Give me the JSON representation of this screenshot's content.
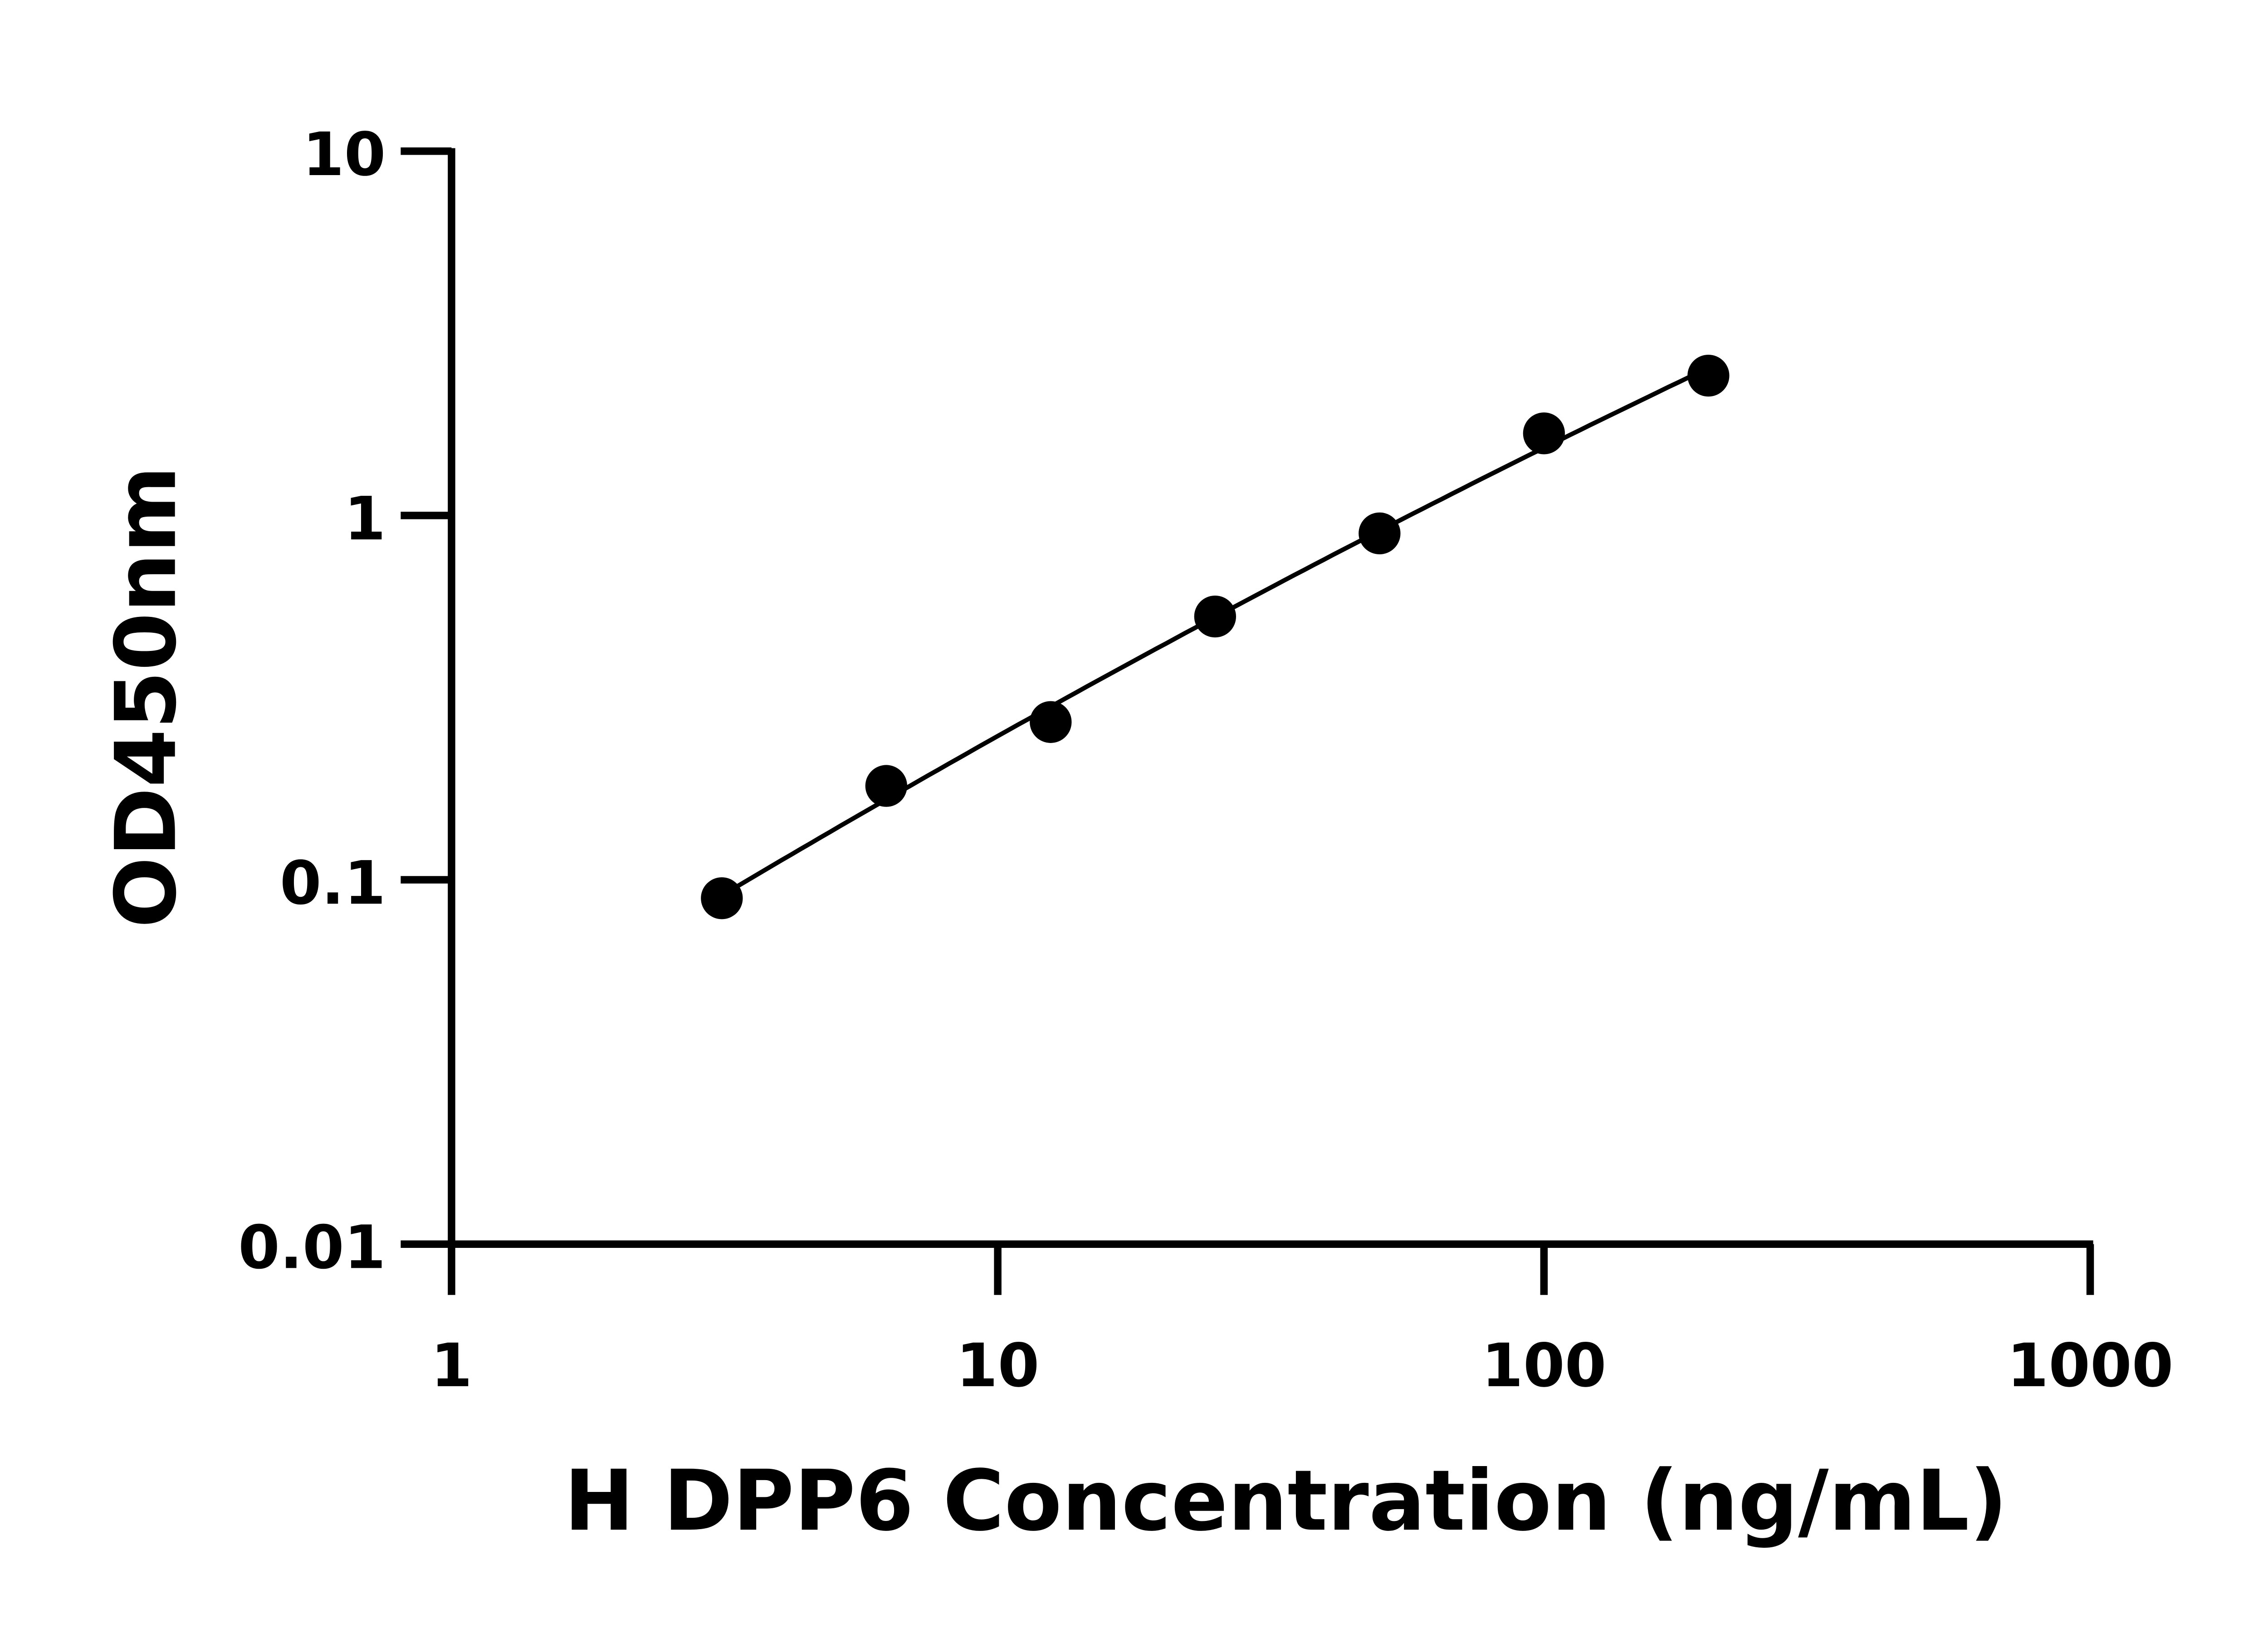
{
  "chart_data": {
    "type": "scatter",
    "title": "",
    "xlabel": "H DPP6 Concentration (ng/mL)",
    "ylabel": "OD450nm",
    "xscale": "log",
    "yscale": "log",
    "xlim": [
      1,
      1000
    ],
    "ylim": [
      0.01,
      10
    ],
    "xticks": [
      "1",
      "10",
      "100",
      "1000"
    ],
    "yticks": [
      "0.01",
      "0.1",
      "1",
      "10"
    ],
    "grid": false,
    "legend": "none",
    "fit_curve": true,
    "color": "#000000",
    "points": [
      {
        "x": 3.125,
        "y": 0.089
      },
      {
        "x": 6.25,
        "y": 0.181
      },
      {
        "x": 12.5,
        "y": 0.271
      },
      {
        "x": 25,
        "y": 0.528
      },
      {
        "x": 50,
        "y": 0.893
      },
      {
        "x": 100,
        "y": 1.68
      },
      {
        "x": 200,
        "y": 2.42
      }
    ]
  }
}
